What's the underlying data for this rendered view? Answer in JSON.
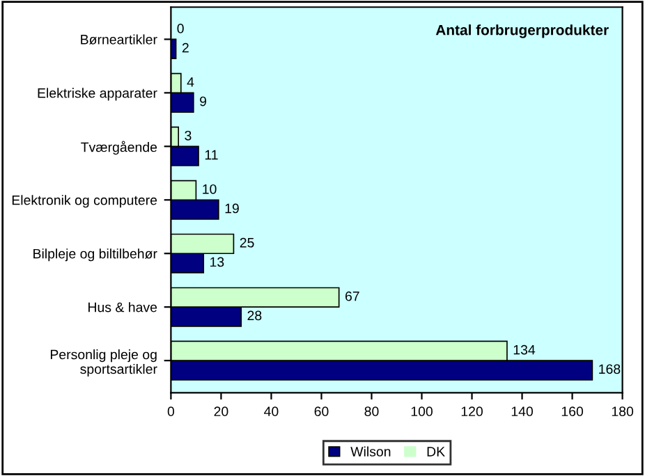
{
  "chart_data": {
    "type": "bar",
    "orientation": "horizontal",
    "title": "Antal forbrugerprodukter",
    "categories": [
      "Børneartikler",
      "Elektriske apparater",
      "Tværgående",
      "Elektronik og computere",
      "Bilpleje og biltilbehør",
      "Hus & have",
      "Personlig pleje og\nsportsartikler"
    ],
    "series": [
      {
        "name": "Wilson",
        "color": "#000080",
        "values": [
          2,
          9,
          11,
          19,
          13,
          28,
          168
        ]
      },
      {
        "name": "DK",
        "color": "#ccffcc",
        "values": [
          0,
          4,
          3,
          10,
          25,
          67,
          134
        ]
      }
    ],
    "xlim": [
      0,
      180
    ],
    "xticks": [
      0,
      20,
      40,
      60,
      80,
      100,
      120,
      140,
      160,
      180
    ],
    "data_labels": true,
    "legend": "bottom",
    "grid": false
  }
}
